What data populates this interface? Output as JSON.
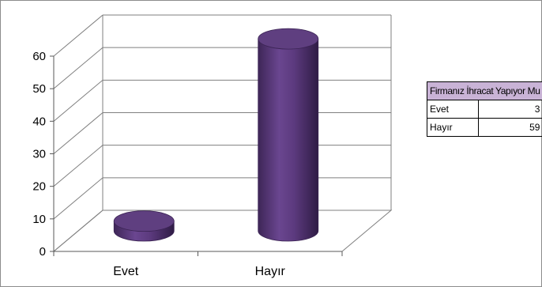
{
  "chart_data": {
    "type": "bar",
    "style": "3d-cylinder",
    "categories": [
      "Evet",
      "Hayır"
    ],
    "values": [
      3,
      59
    ],
    "ylim": [
      0,
      60
    ],
    "yticks": [
      0,
      10,
      20,
      30,
      40,
      50,
      60
    ],
    "grid": true,
    "bar_color": "#5c3a7e",
    "table": {
      "header": "Firmanız İhracat Yapıyor Mu",
      "rows": [
        {
          "label": "Evet",
          "value": "3"
        },
        {
          "label": "Hayır",
          "value": "59"
        }
      ]
    }
  }
}
